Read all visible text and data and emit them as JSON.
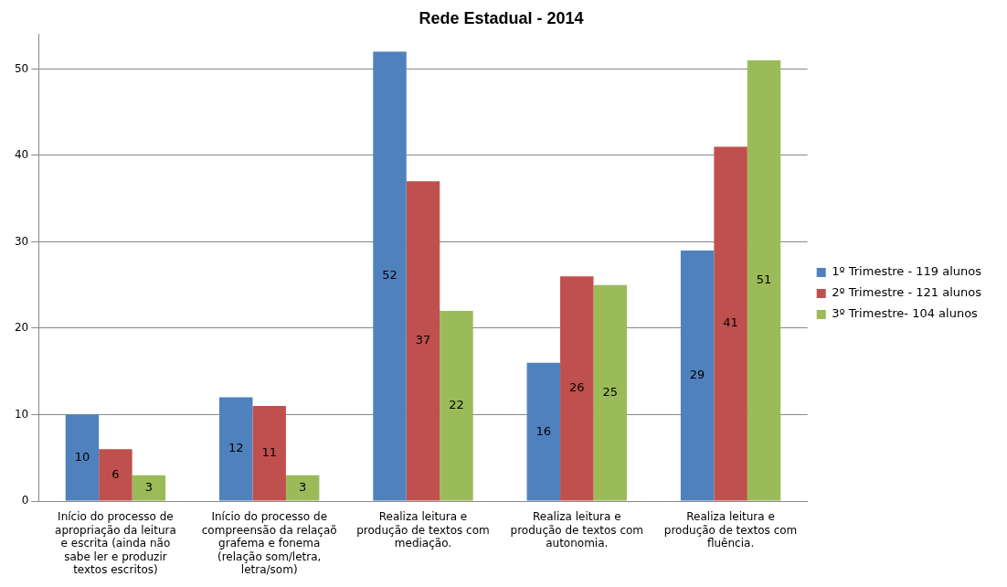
{
  "chart_data": {
    "type": "bar",
    "title": "Rede Estadual - 2014",
    "categories": [
      "Início do processo de apropriação da leitura e escrita (ainda não sabe ler e produzir textos escritos)",
      "Início do processo de compreensão da relaçaõ grafema e fonema (relação som/letra, letra/som)",
      "Realiza leitura e produção de textos com mediação.",
      "Realiza leitura e produção de textos com autonomia.",
      "Realiza leitura e produção de textos com fluência."
    ],
    "series": [
      {
        "name": "1º Trimestre - 119 alunos",
        "color": "#4f81bd",
        "values": [
          10,
          12,
          52,
          16,
          29
        ]
      },
      {
        "name": "2º Trimestre - 121 alunos",
        "color": "#c0504d",
        "values": [
          6,
          11,
          37,
          26,
          41
        ]
      },
      {
        "name": "3º Trimestre- 104 alunos",
        "color": "#9bbb59",
        "values": [
          3,
          3,
          22,
          25,
          51
        ]
      }
    ],
    "ylim": [
      0,
      54
    ],
    "yticks": [
      0,
      10,
      20,
      30,
      40,
      50
    ],
    "grid": "y",
    "legend": "right",
    "data_labels": true
  }
}
